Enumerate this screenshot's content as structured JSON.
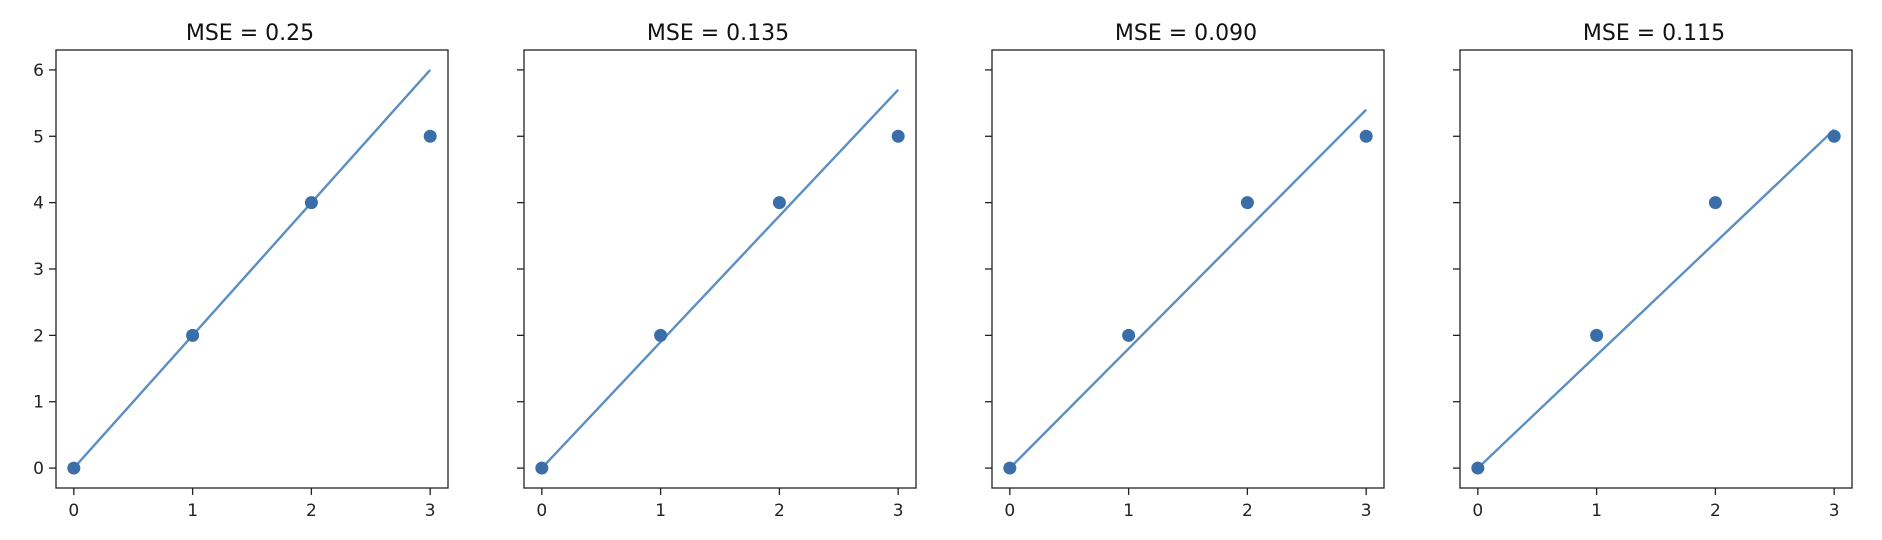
{
  "figure": {
    "line_color": "#5b8fc4",
    "point_color": "#3a6ea8"
  },
  "chart_data": [
    {
      "type": "scatter",
      "title": "MSE = 0.25",
      "points": {
        "x": [
          0,
          1,
          2,
          3
        ],
        "y": [
          0,
          2,
          4,
          5
        ]
      },
      "line": {
        "x": [
          0,
          3
        ],
        "y": [
          0,
          6
        ]
      },
      "xticks": [
        0,
        1,
        2,
        3
      ],
      "yticks": [
        0,
        1,
        2,
        3,
        4,
        5,
        6
      ],
      "show_y_tick_labels": true,
      "xlim": [
        -0.15,
        3.15
      ],
      "ylim": [
        -0.3,
        6.3
      ],
      "grid": false
    },
    {
      "type": "scatter",
      "title": "MSE = 0.135",
      "points": {
        "x": [
          0,
          1,
          2,
          3
        ],
        "y": [
          0,
          2,
          4,
          5
        ]
      },
      "line": {
        "x": [
          0,
          3
        ],
        "y": [
          0,
          5.7
        ]
      },
      "xticks": [
        0,
        1,
        2,
        3
      ],
      "yticks": [
        0,
        1,
        2,
        3,
        4,
        5,
        6
      ],
      "show_y_tick_labels": false,
      "xlim": [
        -0.15,
        3.15
      ],
      "ylim": [
        -0.3,
        6.3
      ],
      "grid": false
    },
    {
      "type": "scatter",
      "title": "MSE = 0.090",
      "points": {
        "x": [
          0,
          1,
          2,
          3
        ],
        "y": [
          0,
          2,
          4,
          5
        ]
      },
      "line": {
        "x": [
          0,
          3
        ],
        "y": [
          0,
          5.4
        ]
      },
      "xticks": [
        0,
        1,
        2,
        3
      ],
      "yticks": [
        0,
        1,
        2,
        3,
        4,
        5,
        6
      ],
      "show_y_tick_labels": false,
      "xlim": [
        -0.15,
        3.15
      ],
      "ylim": [
        -0.3,
        6.3
      ],
      "grid": false
    },
    {
      "type": "scatter",
      "title": "MSE = 0.115",
      "points": {
        "x": [
          0,
          1,
          2,
          3
        ],
        "y": [
          0,
          2,
          4,
          5
        ]
      },
      "line": {
        "x": [
          0,
          3
        ],
        "y": [
          0,
          5.1
        ]
      },
      "xticks": [
        0,
        1,
        2,
        3
      ],
      "yticks": [
        0,
        1,
        2,
        3,
        4,
        5,
        6
      ],
      "show_y_tick_labels": false,
      "xlim": [
        -0.15,
        3.15
      ],
      "ylim": [
        -0.3,
        6.3
      ],
      "grid": false
    }
  ]
}
